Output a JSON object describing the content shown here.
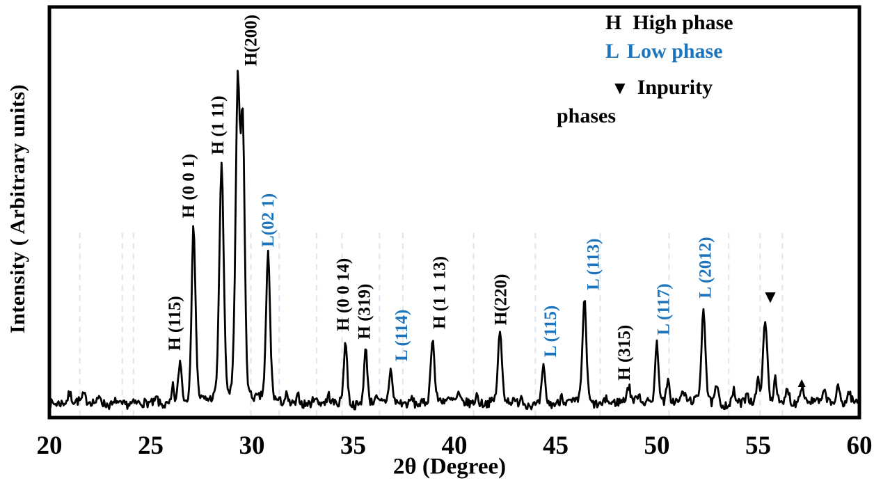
{
  "chart_data": {
    "type": "line",
    "title": "",
    "xlabel": "2θ (Degree)",
    "ylabel": "Intensity ( Arbitrary units)",
    "xlim": [
      20,
      60
    ],
    "ylim": [
      0,
      1
    ],
    "x_ticks": [
      20,
      25,
      30,
      35,
      40,
      45,
      50,
      55,
      60
    ],
    "grid": "faint dashed vertical reference lines",
    "legend_position": "top-right",
    "trace_color": "#000000",
    "phase_colors": {
      "H": "#000000",
      "L": "#1c75bc"
    },
    "legend": {
      "high": {
        "key": "H",
        "label": "High phase",
        "color": "#000000"
      },
      "low": {
        "key": "L",
        "label": "Low phase",
        "color": "#1c75bc"
      },
      "impurity": {
        "marker": "▼",
        "label": "Inpurity",
        "label2": "phases",
        "color": "#000000"
      }
    },
    "baseline": 0.035,
    "noise_amplitude": 0.011,
    "peaks": [
      {
        "center": 26.45,
        "height": 0.105,
        "width": 0.09,
        "label": "H (115)",
        "phase": "H",
        "label_dx": -0.3
      },
      {
        "center": 27.12,
        "height": 0.43,
        "width": 0.1,
        "label": "H (0 0 1)",
        "phase": "H",
        "label_dx": -0.28
      },
      {
        "center": 28.5,
        "height": 0.58,
        "width": 0.11,
        "label": "H (1 11)",
        "phase": "H",
        "label_dx": -0.22
      },
      {
        "center": 29.3,
        "height": 0.755,
        "width": 0.11,
        "label": "H(200)",
        "phase": "H",
        "label_dx": 0.62
      },
      {
        "center": 29.55,
        "height": 0.645,
        "width": 0.1,
        "label": "",
        "phase": "H",
        "label_dx": 0
      },
      {
        "center": 30.8,
        "height": 0.36,
        "width": 0.1,
        "label": "L(02 1)",
        "phase": "L",
        "label_dx": -0.05
      },
      {
        "center": 34.62,
        "height": 0.155,
        "width": 0.09,
        "label": "H (0 0 14)",
        "phase": "H",
        "label_dx": -0.15
      },
      {
        "center": 35.62,
        "height": 0.135,
        "width": 0.09,
        "label": "H (319)",
        "phase": "H",
        "label_dx": -0.1
      },
      {
        "center": 36.85,
        "height": 0.082,
        "width": 0.08,
        "label": "L (114)",
        "phase": "L",
        "label_dx": 0.5
      },
      {
        "center": 38.92,
        "height": 0.16,
        "width": 0.09,
        "label": "H (1 1 13)",
        "phase": "H",
        "label_dx": 0.3
      },
      {
        "center": 42.25,
        "height": 0.17,
        "width": 0.1,
        "label": "H(220)",
        "phase": "H",
        "label_dx": 0
      },
      {
        "center": 44.4,
        "height": 0.092,
        "width": 0.09,
        "label": "L (115)",
        "phase": "L",
        "label_dx": 0.3
      },
      {
        "center": 46.42,
        "height": 0.255,
        "width": 0.1,
        "label": "L (113)",
        "phase": "L",
        "label_dx": 0.4
      },
      {
        "center": 48.6,
        "height": 0.035,
        "width": 0.09,
        "label": "H (315)",
        "phase": "H",
        "label_dx": -0.25
      },
      {
        "center": 50.0,
        "height": 0.145,
        "width": 0.09,
        "label": "L (117)",
        "phase": "L",
        "label_dx": 0.3
      },
      {
        "center": 52.3,
        "height": 0.235,
        "width": 0.1,
        "label": "L (2012)",
        "phase": "L",
        "label_dx": 0.05
      },
      {
        "center": 55.35,
        "height": 0.2,
        "width": 0.11,
        "label": "",
        "phase": "H",
        "label_dx": 0
      },
      {
        "center": 57.15,
        "height": 0.042,
        "width": 0.1,
        "label": "",
        "phase": "H",
        "label_dx": 0
      }
    ],
    "minor_bumps": [
      {
        "center": 21.0,
        "height": 0.02,
        "width": 0.08
      },
      {
        "center": 21.7,
        "height": 0.016,
        "width": 0.06
      },
      {
        "center": 22.5,
        "height": 0.018,
        "width": 0.07
      },
      {
        "center": 23.3,
        "height": 0.014,
        "width": 0.06
      },
      {
        "center": 25.3,
        "height": 0.016,
        "width": 0.06
      },
      {
        "center": 26.1,
        "height": 0.045,
        "width": 0.06
      },
      {
        "center": 31.7,
        "height": 0.02,
        "width": 0.06
      },
      {
        "center": 32.3,
        "height": 0.022,
        "width": 0.07
      },
      {
        "center": 33.1,
        "height": 0.018,
        "width": 0.06
      },
      {
        "center": 33.8,
        "height": 0.018,
        "width": 0.06
      },
      {
        "center": 36.1,
        "height": 0.018,
        "width": 0.06
      },
      {
        "center": 37.9,
        "height": 0.016,
        "width": 0.06
      },
      {
        "center": 40.2,
        "height": 0.018,
        "width": 0.06
      },
      {
        "center": 41.1,
        "height": 0.022,
        "width": 0.07
      },
      {
        "center": 43.3,
        "height": 0.02,
        "width": 0.06
      },
      {
        "center": 45.3,
        "height": 0.022,
        "width": 0.06
      },
      {
        "center": 47.5,
        "height": 0.018,
        "width": 0.06
      },
      {
        "center": 49.1,
        "height": 0.022,
        "width": 0.06
      },
      {
        "center": 50.55,
        "height": 0.05,
        "width": 0.08
      },
      {
        "center": 51.3,
        "height": 0.026,
        "width": 0.07
      },
      {
        "center": 52.95,
        "height": 0.045,
        "width": 0.08
      },
      {
        "center": 53.8,
        "height": 0.032,
        "width": 0.08
      },
      {
        "center": 54.45,
        "height": 0.028,
        "width": 0.07
      },
      {
        "center": 55.0,
        "height": 0.05,
        "width": 0.08
      },
      {
        "center": 55.85,
        "height": 0.07,
        "width": 0.08
      },
      {
        "center": 56.45,
        "height": 0.04,
        "width": 0.09
      },
      {
        "center": 58.3,
        "height": 0.028,
        "width": 0.08
      },
      {
        "center": 58.95,
        "height": 0.038,
        "width": 0.09
      },
      {
        "center": 59.5,
        "height": 0.028,
        "width": 0.08
      }
    ],
    "impurity_markers": [
      {
        "x": 55.6,
        "y": 0.28,
        "glyph": "▼",
        "size": 26
      },
      {
        "x": 57.15,
        "y": 0.075,
        "glyph": "▲",
        "size": 19
      }
    ],
    "gridlines_x": [
      21.5,
      23.6,
      24.15,
      29.95,
      31.35,
      33.2,
      34.45,
      36.3,
      37.45,
      40.95,
      44.0,
      47.2,
      50.6,
      53.55,
      55.1,
      56.2
    ]
  }
}
